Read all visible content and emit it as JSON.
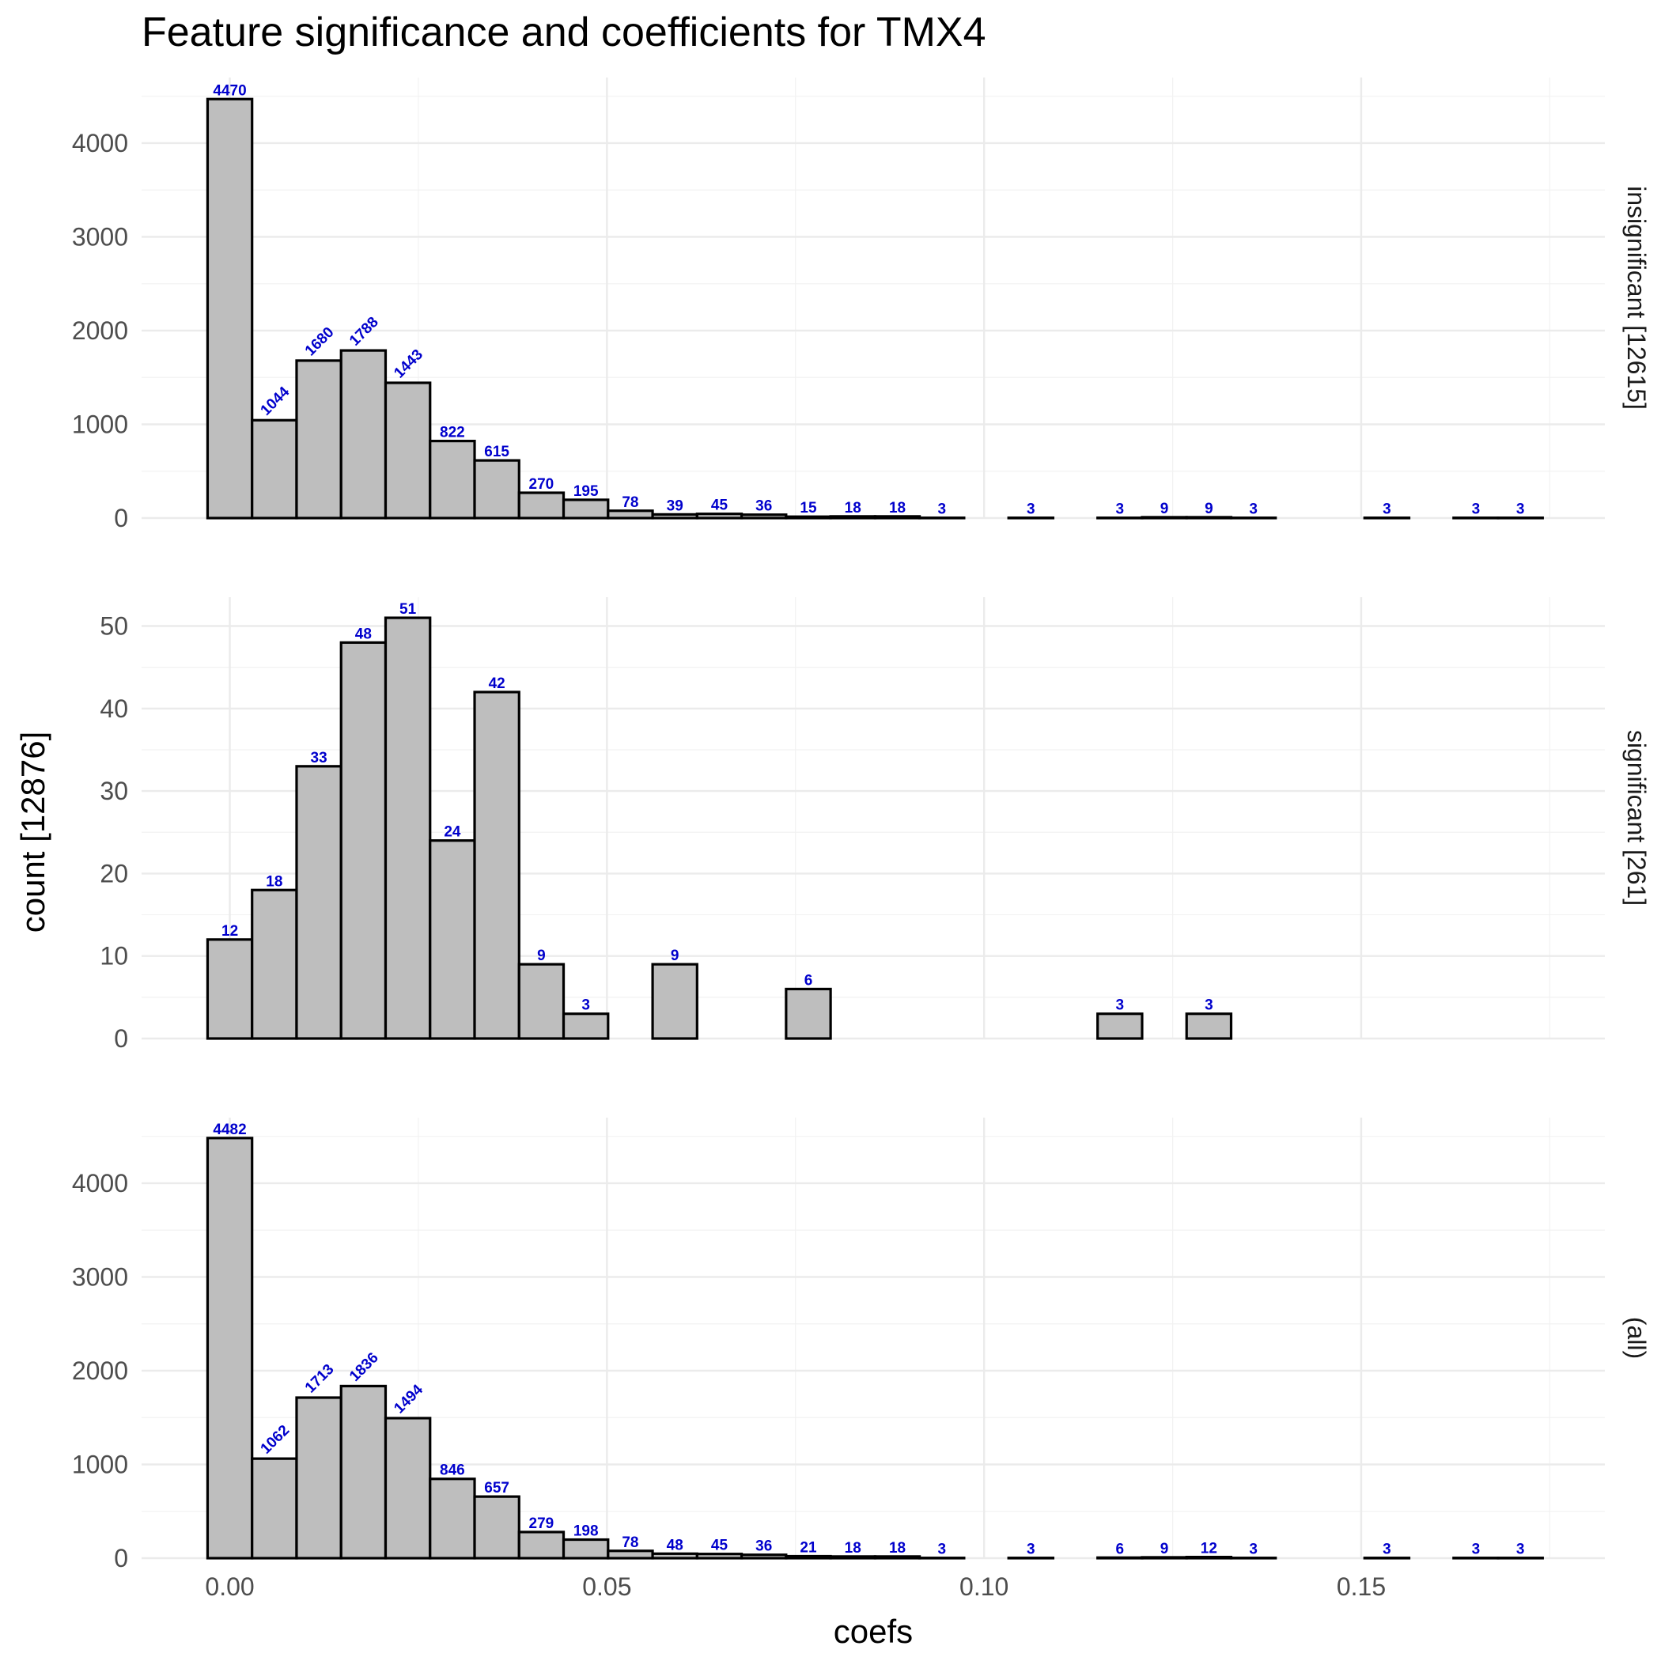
{
  "chart_data": {
    "type": "bar",
    "title": "Feature significance and coefficients for TMX4",
    "xlabel": "coefs",
    "ylabel": "count [12876]",
    "xlim": [
      -0.0117,
      0.1823
    ],
    "x_ticks": [
      "0.00",
      "0.05",
      "0.10",
      "0.15"
    ],
    "bin_width": 0.0059,
    "bin_centers": [
      0.0,
      0.0059,
      0.0118,
      0.0177,
      0.0236,
      0.0295,
      0.0354,
      0.0413,
      0.0472,
      0.0531,
      0.059,
      0.0649,
      0.0708,
      0.0767,
      0.0826,
      0.0885,
      0.0944,
      0.1003,
      0.1062,
      0.1121,
      0.118,
      0.1239,
      0.1298,
      0.1357,
      0.1416,
      0.1475,
      0.1534,
      0.1593,
      0.1652,
      0.1711
    ],
    "panels": [
      {
        "strip": "insignificant [12615]",
        "ylim": [
          0,
          4700
        ],
        "y_ticks": [
          "0",
          "1000",
          "2000",
          "3000",
          "4000"
        ],
        "values": [
          4470,
          1044,
          1680,
          1788,
          1443,
          822,
          615,
          270,
          195,
          78,
          39,
          45,
          36,
          15,
          18,
          18,
          3,
          0,
          3,
          0,
          3,
          9,
          9,
          3,
          0,
          0,
          3,
          0,
          3,
          3
        ]
      },
      {
        "strip": "significant [261]",
        "ylim": [
          0,
          53.5
        ],
        "y_ticks": [
          "0",
          "10",
          "20",
          "30",
          "40",
          "50"
        ],
        "values": [
          12,
          18,
          33,
          48,
          51,
          24,
          42,
          9,
          3,
          0,
          9,
          0,
          0,
          6,
          0,
          0,
          0,
          0,
          0,
          0,
          3,
          0,
          3,
          0,
          0,
          0,
          0,
          0,
          0,
          0
        ]
      },
      {
        "strip": "(all)",
        "ylim": [
          0,
          4700
        ],
        "y_ticks": [
          "0",
          "1000",
          "2000",
          "3000",
          "4000"
        ],
        "values": [
          4482,
          1062,
          1713,
          1836,
          1494,
          846,
          657,
          279,
          198,
          78,
          48,
          45,
          36,
          21,
          18,
          18,
          3,
          0,
          3,
          0,
          6,
          9,
          12,
          3,
          0,
          0,
          3,
          0,
          3,
          3
        ]
      }
    ],
    "rotated_label_bins": [
      1,
      2,
      3,
      4
    ],
    "rotated_label_panels": [
      0,
      2
    ],
    "colors": {
      "bar_fill": "#bebebe",
      "bar_outline": "#000000",
      "bar_label": "#0000cc",
      "grid": "#ebebeb"
    },
    "grid": true,
    "legend": "none"
  }
}
